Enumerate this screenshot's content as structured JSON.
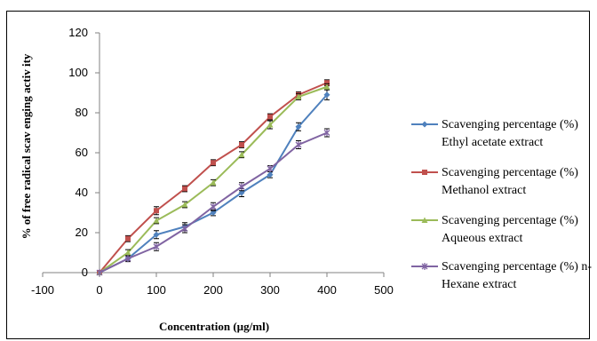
{
  "chart_data": {
    "type": "line",
    "xlabel": "Concentration (µg/ml)",
    "ylabel": "% of free radical scav enging activ ity",
    "xlim": [
      -100,
      500
    ],
    "ylim": [
      0,
      120
    ],
    "x_ticks": [
      -100,
      0,
      100,
      200,
      300,
      400,
      500
    ],
    "y_ticks": [
      0,
      20,
      40,
      60,
      80,
      100,
      120
    ],
    "grid": false,
    "legend_position": "right",
    "series": [
      {
        "name": [
          "Scavenging percentage (%)",
          "Ethyl acetate extract"
        ],
        "color": "#4F81BD",
        "marker": "diamond",
        "x": [
          0,
          50,
          100,
          150,
          200,
          250,
          300,
          350,
          400
        ],
        "y": [
          0,
          7,
          19,
          23,
          30,
          40,
          49,
          73,
          89
        ],
        "err": [
          0,
          1,
          2,
          2,
          1.5,
          2,
          1.5,
          2,
          2.5
        ]
      },
      {
        "name": [
          "Scavenging percentage (%)",
          "Methanol extract"
        ],
        "color": "#C0504D",
        "marker": "square",
        "x": [
          0,
          50,
          100,
          150,
          200,
          250,
          300,
          350,
          400
        ],
        "y": [
          0,
          17,
          31,
          42,
          55,
          64,
          78,
          89,
          95
        ],
        "err": [
          0,
          1.5,
          2,
          1.5,
          1.5,
          1.5,
          1.5,
          1.5,
          1.5
        ]
      },
      {
        "name": [
          "Scavenging percentage (%)",
          "Aqueous extract"
        ],
        "color": "#9BBB59",
        "marker": "triangle",
        "x": [
          0,
          50,
          100,
          150,
          200,
          250,
          300,
          350,
          400
        ],
        "y": [
          0,
          10,
          26,
          34,
          45,
          59,
          74,
          88,
          93
        ],
        "err": [
          0,
          1.5,
          1.5,
          1.5,
          1.5,
          1.5,
          2,
          1.5,
          1.5
        ]
      },
      {
        "name": [
          "Scavenging percentage (%) n-",
          "Hexane extract"
        ],
        "color": "#8064A2",
        "marker": "star",
        "x": [
          0,
          50,
          100,
          150,
          200,
          250,
          300,
          350,
          400
        ],
        "y": [
          0,
          7,
          13,
          22,
          33,
          43,
          52,
          64,
          70
        ],
        "err": [
          0,
          1.5,
          2,
          2,
          2,
          2,
          1.5,
          2,
          2
        ]
      }
    ]
  }
}
